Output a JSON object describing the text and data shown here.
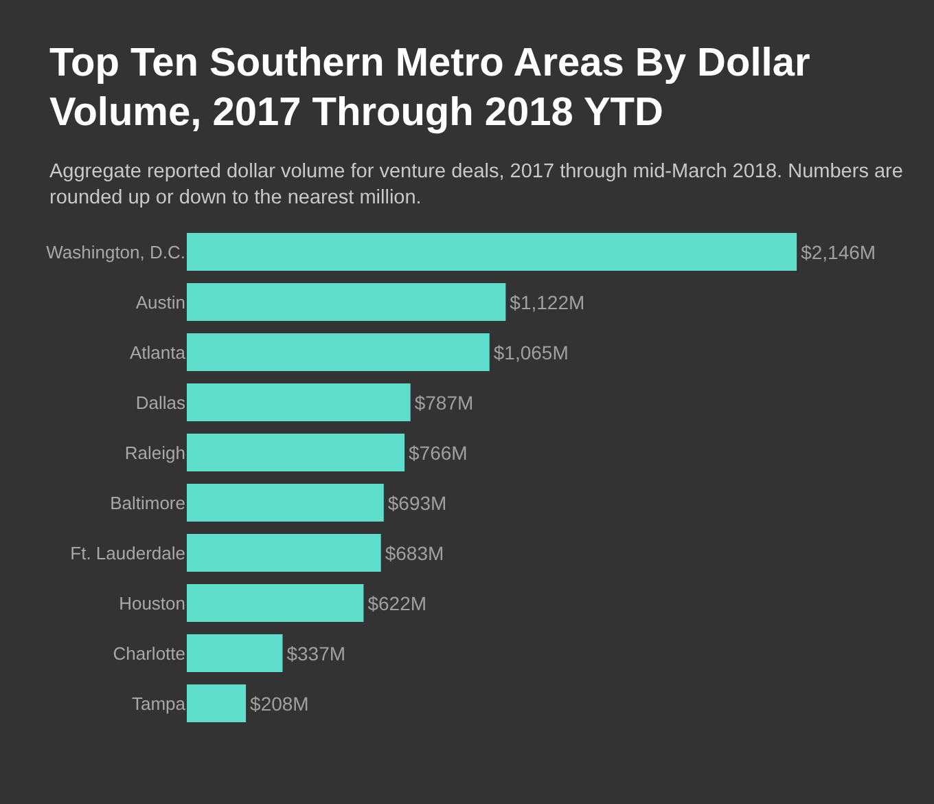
{
  "chart_data": {
    "type": "bar",
    "orientation": "horizontal",
    "title": "Top Ten Southern Metro Areas By Dollar Volume, 2017 Through 2018 YTD",
    "subtitle": "Aggregate reported dollar volume for venture deals, 2017 through mid-March 2018. Numbers are rounded up or down to the nearest million.",
    "categories": [
      "Washington, D.C.",
      "Austin",
      "Atlanta",
      "Dallas",
      "Raleigh",
      "Baltimore",
      "Ft. Lauderdale",
      "Houston",
      "Charlotte",
      "Tampa"
    ],
    "values": [
      2146,
      1122,
      1065,
      787,
      766,
      693,
      683,
      622,
      337,
      208
    ],
    "value_labels": [
      "$2,146M",
      "$1,122M",
      "$1,065M",
      "$787M",
      "$766M",
      "$693M",
      "$683M",
      "$622M",
      "$337M",
      "$208M"
    ],
    "color": "#5fdfcb",
    "grid": false,
    "legend": false
  }
}
